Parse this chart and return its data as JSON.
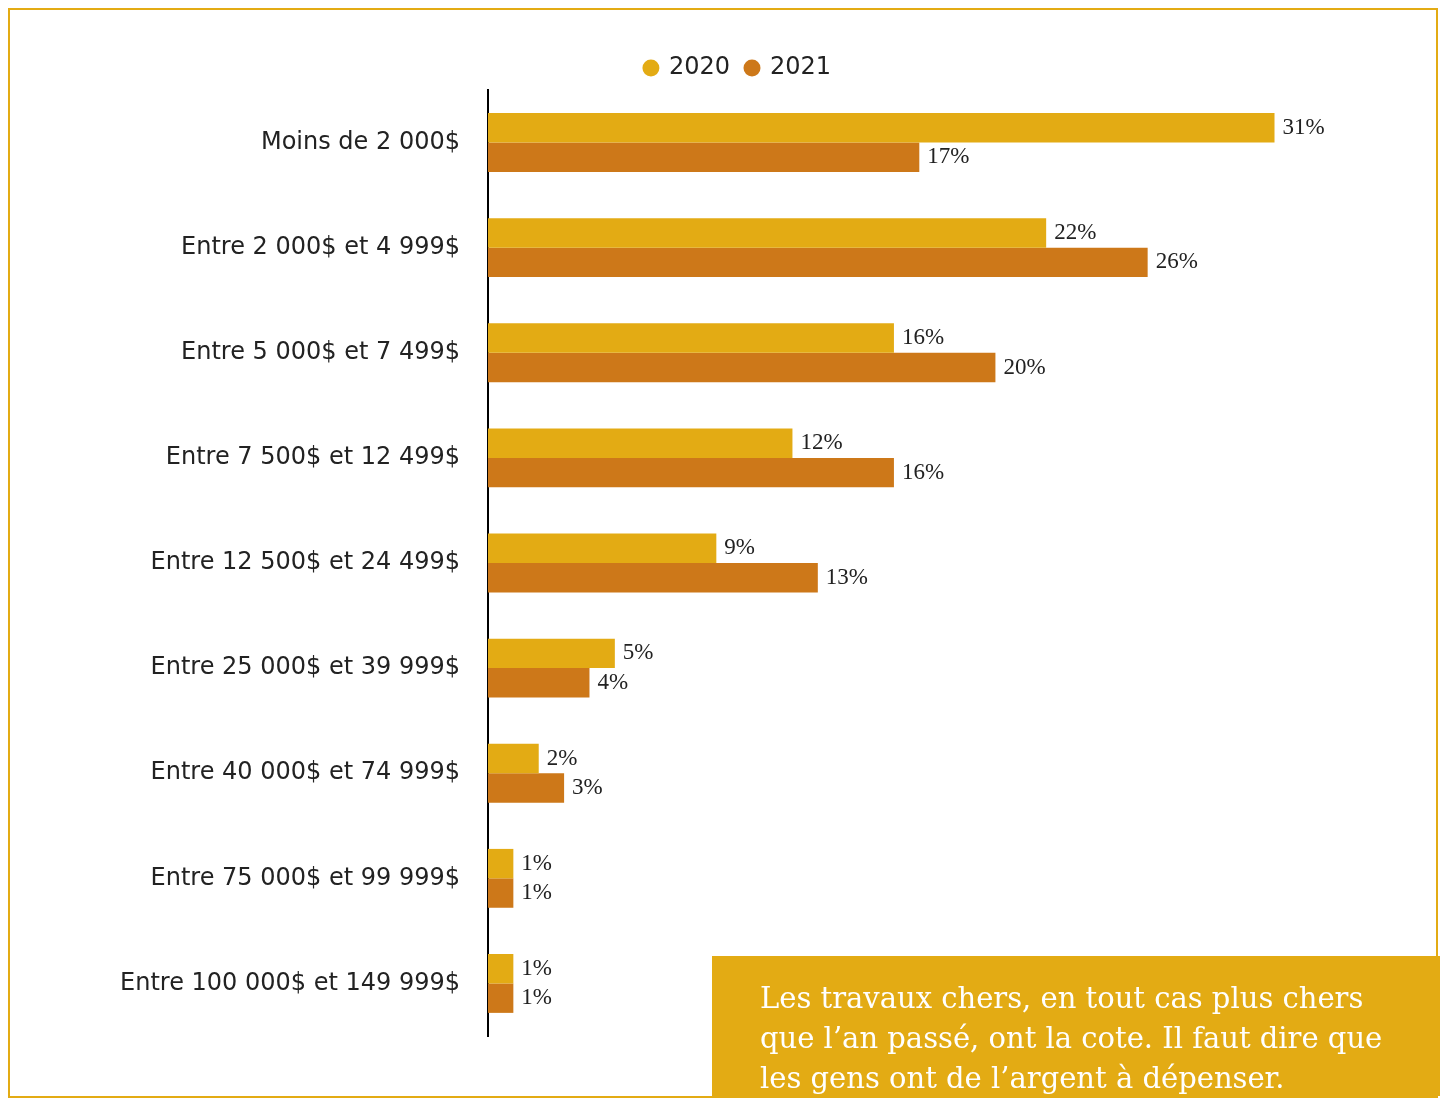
{
  "chart_data": {
    "type": "bar",
    "orientation": "horizontal",
    "categories": [
      "Moins de 2 000$",
      "Entre 2 000$ et 4 999$",
      "Entre 5 000$ et 7 499$",
      "Entre 7 500$ et 12 499$",
      "Entre 12 500$ et 24 499$",
      "Entre 25 000$ et 39 999$",
      "Entre 40 000$ et 74 999$",
      "Entre 75 000$ et 99 999$",
      "Entre 100 000$ et 149 999$"
    ],
    "series": [
      {
        "name": "2020",
        "color": "#e3ab14",
        "values": [
          31,
          22,
          16,
          12,
          9,
          5,
          2,
          1,
          1
        ],
        "value_labels": [
          "31%",
          "22%",
          "16%",
          "12%",
          "9%",
          "5%",
          "2%",
          "1%",
          "1%"
        ]
      },
      {
        "name": "2021",
        "color": "#cd7819",
        "values": [
          17,
          26,
          20,
          16,
          13,
          4,
          3,
          1,
          1
        ],
        "value_labels": [
          "17%",
          "26%",
          "20%",
          "16%",
          "13%",
          "4%",
          "3%",
          "1%",
          "1%"
        ]
      }
    ],
    "legend": "top",
    "tick_labels": "y",
    "annotations": [
      "Les travaux chers, en tout cas plus chers que l’an passé, ont la cote. Il faut dire que les gens ont de l’argent à dépenser."
    ]
  }
}
